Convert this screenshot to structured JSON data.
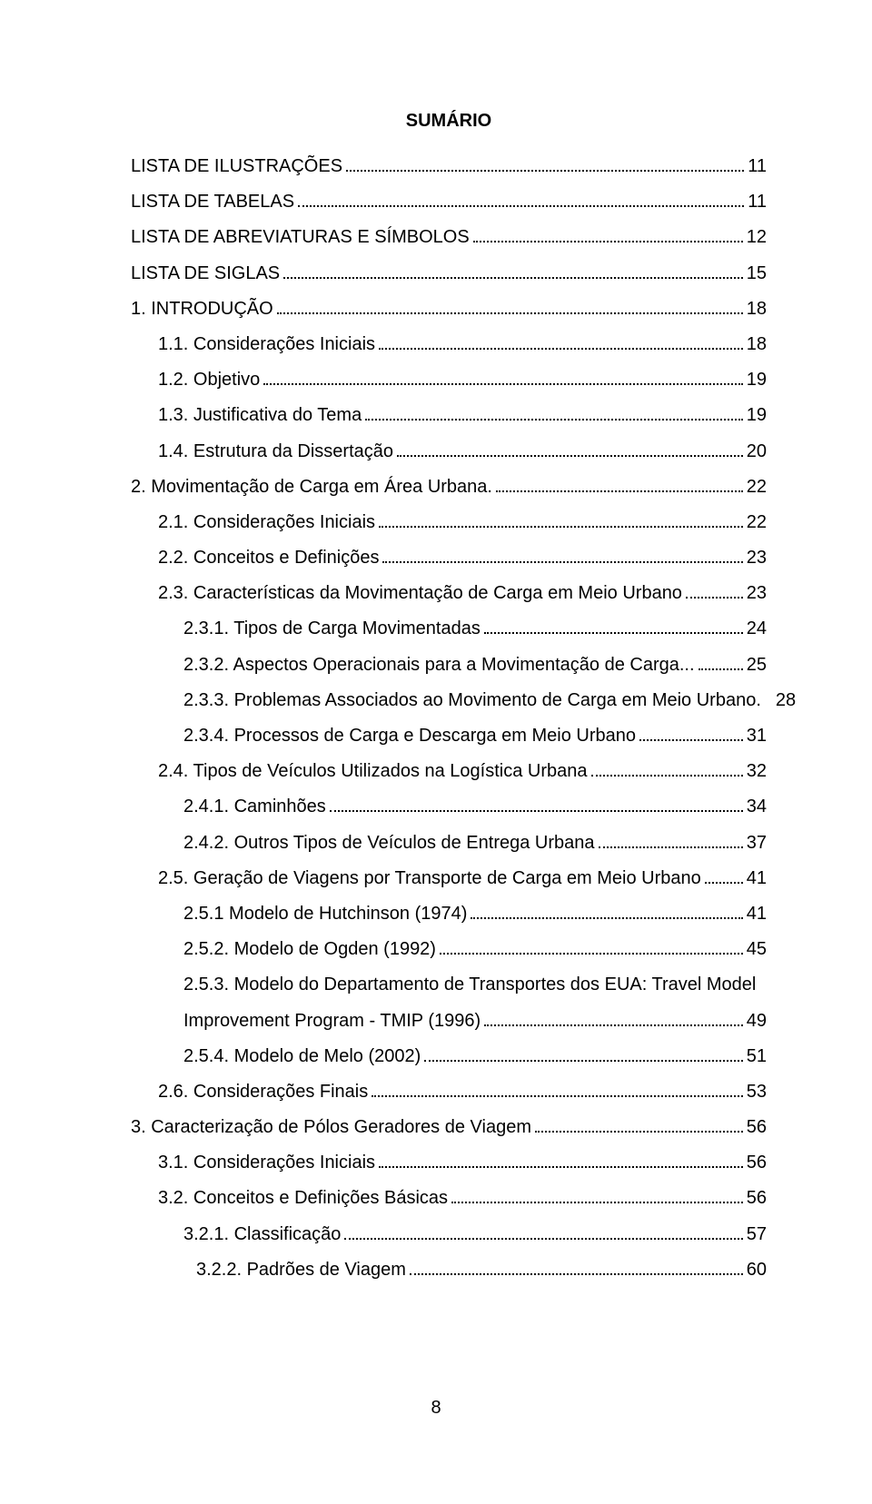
{
  "title": "SUMÁRIO",
  "page_number": "8",
  "font": {
    "family": "Arial",
    "size_pt": 20,
    "title_weight": "bold",
    "color": "#000000"
  },
  "background_color": "#ffffff",
  "toc": [
    {
      "indent": 0,
      "label": "LISTA DE ILUSTRAÇÕES",
      "page": "11",
      "dots": true
    },
    {
      "indent": 0,
      "label": "LISTA DE TABELAS",
      "page": "11",
      "dots": true
    },
    {
      "indent": 0,
      "label": "LISTA DE ABREVIATURAS E SÍMBOLOS",
      "page": "12",
      "dots": true
    },
    {
      "indent": 0,
      "label": "LISTA DE SIGLAS",
      "page": "15",
      "dots": true
    },
    {
      "indent": 0,
      "label": "1. INTRODUÇÃO",
      "page": "18",
      "dots": true
    },
    {
      "indent": 1,
      "label": "1.1. Considerações Iniciais",
      "page": "18",
      "dots": true
    },
    {
      "indent": 1,
      "label": "1.2. Objetivo",
      "page": "19",
      "dots": true
    },
    {
      "indent": 1,
      "label": "1.3. Justificativa do Tema",
      "page": "19",
      "dots": true
    },
    {
      "indent": 1,
      "label": "1.4. Estrutura da Dissertação",
      "page": "20",
      "dots": true
    },
    {
      "indent": 0,
      "label": "2. Movimentação de Carga em Área Urbana.",
      "page": "22",
      "dots": true
    },
    {
      "indent": 1,
      "label": "2.1. Considerações Iniciais",
      "page": "22",
      "dots": true
    },
    {
      "indent": 1,
      "label": "2.2. Conceitos e Definições",
      "page": "23",
      "dots": true
    },
    {
      "indent": 1,
      "label": "2.3. Características da Movimentação de Carga em Meio Urbano",
      "page": "23",
      "dots": true
    },
    {
      "indent": 2,
      "label": "2.3.1. Tipos de Carga Movimentadas",
      "page": "24",
      "dots": true
    },
    {
      "indent": 2,
      "label": "2.3.2. Aspectos Operacionais para a Movimentação de Carga...",
      "page": "25",
      "dots": true
    },
    {
      "indent": 2,
      "label": "2.3.3. Problemas Associados ao Movimento de Carga em Meio Urbano.",
      "page": "28",
      "dots": false
    },
    {
      "indent": 2,
      "label": "2.3.4. Processos de Carga e Descarga em Meio Urbano",
      "page": "31",
      "dots": true
    },
    {
      "indent": 1,
      "label": "2.4. Tipos de Veículos Utilizados na Logística Urbana",
      "page": "32",
      "dots": true
    },
    {
      "indent": 2,
      "label": "2.4.1. Caminhões",
      "page": "34",
      "dots": true
    },
    {
      "indent": 2,
      "label": "2.4.2. Outros Tipos de Veículos de Entrega Urbana",
      "page": "37",
      "dots": true
    },
    {
      "indent": 1,
      "label": "2.5. Geração de Viagens por Transporte de Carga em Meio Urbano",
      "page": "41",
      "dots": true
    },
    {
      "indent": 2,
      "label": "2.5.1 Modelo de Hutchinson (1974)",
      "page": "41",
      "dots": true
    },
    {
      "indent": 2,
      "label": "2.5.2. Modelo de Ogden (1992)",
      "page": "45",
      "dots": true
    },
    {
      "indent": 2,
      "label": "2.5.3. Modelo do Departamento de Transportes dos EUA: Travel Model",
      "page": "",
      "dots": false
    },
    {
      "indent": 2,
      "label": "Improvement Program - TMIP (1996)",
      "page": "49",
      "dots": true
    },
    {
      "indent": 2,
      "label": "2.5.4. Modelo de Melo (2002)",
      "page": "51",
      "dots": true
    },
    {
      "indent": 1,
      "label": "2.6. Considerações Finais",
      "page": "53",
      "dots": true
    },
    {
      "indent": 0,
      "label": "3. Caracterização de Pólos Geradores de Viagem",
      "page": "56",
      "dots": true
    },
    {
      "indent": 1,
      "label": "3.1. Considerações Iniciais",
      "page": "56",
      "dots": true
    },
    {
      "indent": 1,
      "label": "3.2. Conceitos e Definições Básicas",
      "page": "56",
      "dots": true
    },
    {
      "indent": 2,
      "label": "3.2.1. Classificação",
      "page": "57",
      "dots": true
    },
    {
      "indent": 3,
      "label": "3.2.2.   Padrões de Viagem",
      "page": "60",
      "dots": true
    }
  ]
}
